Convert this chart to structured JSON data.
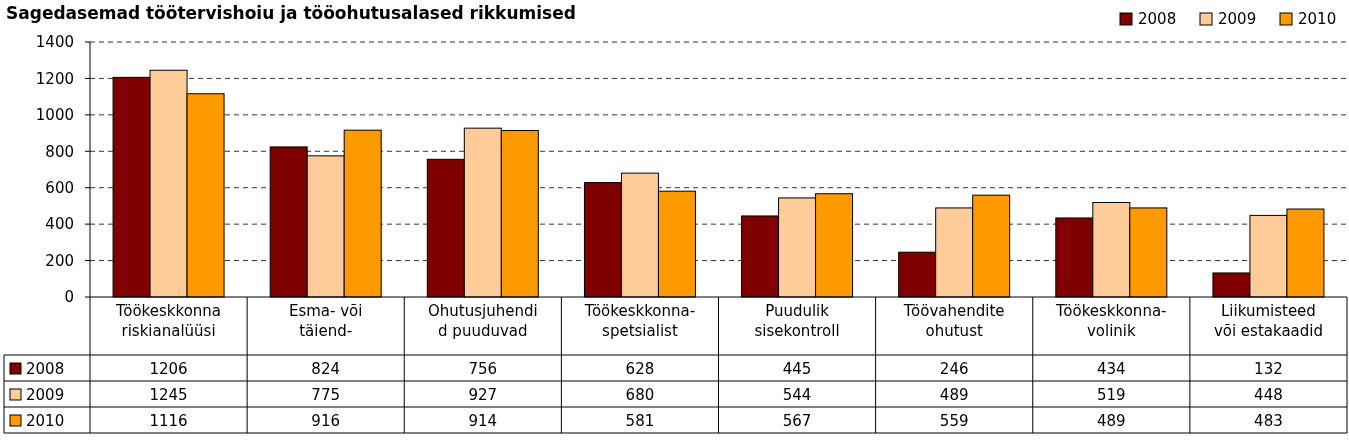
{
  "chart_data": {
    "type": "bar",
    "title": "Sagedasemad töötervishoiu ja tööohutusalased rikkumised",
    "categories": [
      "Töökeskkonna\nriskianalüüsi",
      "Esma- või\ntäiend-",
      "Ohutusjuhendi\nd puuduvad",
      "Töökeskkonna-\nspetsialist",
      "Puudulik\nsisekontroll",
      "Töövahendite\nohutust",
      "Töökeskkonna-\nvolinik",
      "Liikumisteed\nvõi estakaadid"
    ],
    "series": [
      {
        "name": "2008",
        "color": "#800000",
        "values": [
          1206,
          824,
          756,
          628,
          445,
          246,
          434,
          132
        ]
      },
      {
        "name": "2009",
        "color": "#ffcc99",
        "values": [
          1245,
          775,
          927,
          680,
          544,
          489,
          519,
          448
        ]
      },
      {
        "name": "2010",
        "color": "#ff9900",
        "values": [
          1116,
          916,
          914,
          581,
          567,
          559,
          489,
          483
        ]
      }
    ],
    "ylim": [
      0,
      1400
    ],
    "yticks": [
      0,
      200,
      400,
      600,
      800,
      1000,
      1200,
      1400
    ],
    "grid": "y",
    "legend": "top right",
    "data_labels": true
  }
}
